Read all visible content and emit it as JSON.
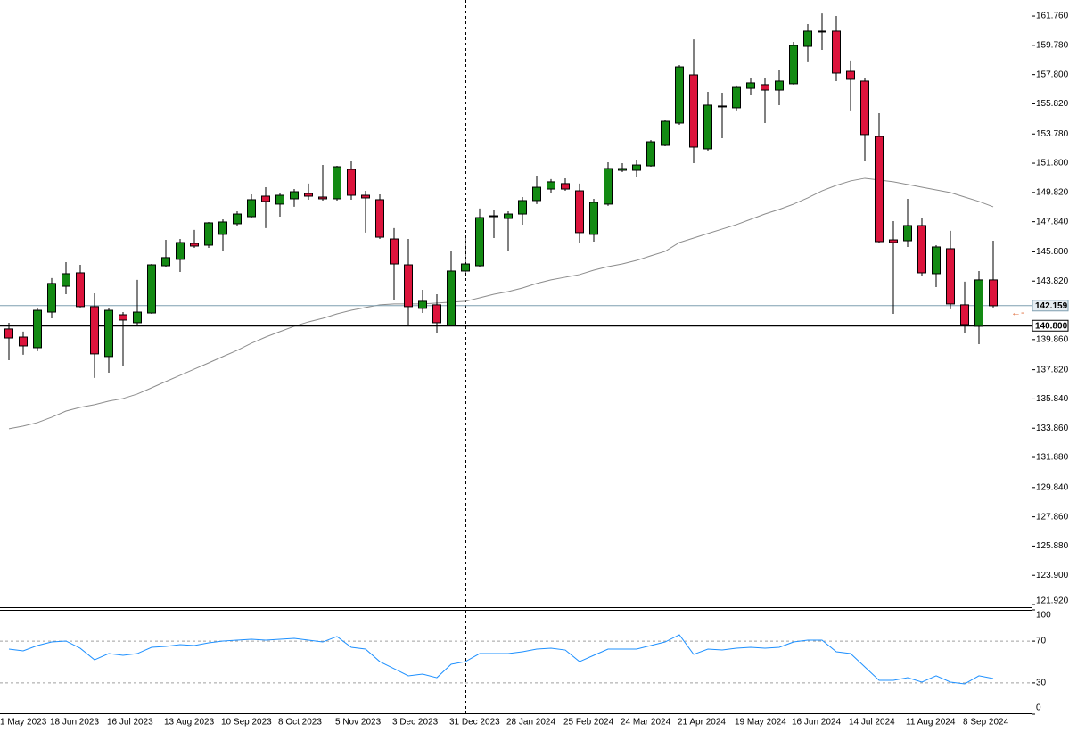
{
  "chart_data": [
    {
      "type": "candlestick",
      "categories": [
        "1 May 2023",
        null,
        null,
        "18 Jun 2023",
        null,
        null,
        null,
        "16 Jul 2023",
        null,
        null,
        null,
        "13 Aug 2023",
        null,
        null,
        null,
        "10 Sep 2023",
        null,
        null,
        null,
        "8 Oct 2023",
        null,
        null,
        null,
        "5 Nov 2023",
        null,
        null,
        null,
        "3 Dec 2023",
        null,
        null,
        null,
        "31 Dec 2023",
        null,
        null,
        null,
        "28 Jan 2024",
        null,
        null,
        null,
        "25 Feb 2024",
        null,
        null,
        null,
        "24 Mar 2024",
        null,
        null,
        null,
        "21 Apr 2024",
        null,
        null,
        null,
        "19 May 2024",
        null,
        null,
        null,
        "16 Jun 2024",
        null,
        null,
        null,
        "14 Jul 2024",
        null,
        null,
        null,
        "11 Aug 2024",
        null,
        null,
        null,
        "8 Sep 2024",
        null,
        null
      ],
      "open": [
        140.58,
        140.03,
        139.31,
        141.72,
        143.47,
        144.38,
        142.09,
        138.71,
        141.54,
        141.0,
        141.66,
        144.86,
        145.29,
        146.37,
        146.25,
        146.98,
        147.7,
        148.18,
        149.57,
        149.03,
        149.39,
        149.75,
        149.51,
        149.39,
        151.38,
        149.63,
        149.33,
        146.67,
        144.92,
        141.97,
        142.21,
        140.82,
        144.5,
        144.86,
        148.18,
        148.06,
        148.36,
        149.27,
        150.05,
        150.42,
        149.93,
        146.98,
        149.03,
        151.32,
        151.32,
        151.62,
        153.01,
        154.52,
        157.78,
        152.77,
        155.61,
        155.55,
        156.87,
        157.12,
        156.75,
        157.18,
        159.71,
        160.68,
        160.74,
        158.02,
        157.36,
        153.61,
        146.61,
        146.55,
        147.58,
        144.32,
        146.01,
        142.21,
        140.76,
        143.9
      ],
      "high": [
        141.0,
        140.4,
        141.97,
        144.02,
        145.1,
        144.92,
        142.99,
        141.97,
        141.72,
        143.9,
        144.98,
        146.61,
        146.67,
        147.28,
        147.82,
        148.0,
        148.54,
        149.69,
        150.17,
        149.81,
        150.05,
        150.42,
        151.68,
        151.62,
        151.92,
        149.93,
        149.69,
        147.4,
        146.67,
        143.23,
        142.93,
        145.83,
        146.73,
        148.73,
        148.61,
        148.54,
        149.51,
        150.96,
        150.72,
        150.78,
        150.42,
        149.39,
        151.86,
        151.8,
        151.99,
        153.37,
        154.7,
        158.44,
        160.19,
        156.63,
        156.57,
        157.06,
        157.6,
        157.6,
        158.14,
        160.01,
        161.22,
        161.94,
        161.76,
        158.75,
        157.54,
        155.18,
        147.88,
        149.39,
        148.06,
        146.25,
        147.22,
        143.78,
        144.5,
        146.55
      ],
      "low": [
        138.46,
        138.83,
        139.07,
        141.3,
        142.93,
        142.03,
        137.26,
        137.62,
        138.04,
        140.76,
        141.6,
        144.74,
        144.44,
        146.07,
        146.07,
        145.89,
        147.52,
        148.06,
        147.4,
        148.18,
        148.85,
        149.33,
        149.27,
        149.27,
        149.33,
        147.1,
        146.67,
        142.51,
        140.82,
        141.66,
        140.28,
        140.76,
        144.14,
        144.74,
        146.73,
        145.83,
        147.64,
        149.03,
        149.81,
        149.93,
        146.43,
        146.49,
        148.91,
        151.2,
        150.84,
        151.56,
        152.95,
        154.4,
        151.8,
        152.65,
        153.49,
        155.37,
        156.45,
        154.52,
        155.73,
        157.12,
        158.69,
        159.47,
        157.36,
        155.37,
        151.92,
        146.43,
        141.6,
        146.13,
        144.2,
        143.41,
        141.91,
        140.28,
        139.55,
        142.03
      ],
      "close": [
        139.97,
        139.43,
        141.84,
        143.66,
        144.32,
        142.09,
        138.89,
        141.84,
        141.18,
        141.72,
        144.92,
        145.41,
        146.43,
        146.19,
        147.76,
        147.82,
        148.36,
        149.33,
        149.21,
        149.63,
        149.87,
        149.57,
        149.39,
        151.56,
        149.63,
        149.45,
        146.79,
        144.98,
        142.09,
        142.45,
        141.0,
        144.5,
        144.98,
        148.12,
        148.24,
        148.36,
        149.27,
        150.17,
        150.54,
        150.05,
        147.1,
        149.15,
        151.44,
        151.44,
        151.68,
        153.25,
        154.64,
        158.32,
        152.89,
        155.73,
        155.67,
        156.93,
        157.24,
        156.75,
        157.36,
        159.77,
        160.74,
        160.74,
        157.9,
        157.48,
        153.74,
        146.49,
        146.43,
        147.58,
        144.38,
        146.13,
        142.27,
        140.88,
        143.9,
        142.15
      ],
      "up_color": "#138a13",
      "down_color": "#dc143c",
      "moving_average": {
        "color": "#8c8c8c",
        "values": [
          133.82,
          134.0,
          134.24,
          134.6,
          135.02,
          135.27,
          135.45,
          135.69,
          135.87,
          136.17,
          136.59,
          137.02,
          137.44,
          137.86,
          138.28,
          138.71,
          139.13,
          139.61,
          140.03,
          140.4,
          140.76,
          141.06,
          141.3,
          141.6,
          141.84,
          142.03,
          142.21,
          142.27,
          142.27,
          142.27,
          142.33,
          142.39,
          142.45,
          142.69,
          142.93,
          143.11,
          143.35,
          143.66,
          143.9,
          144.08,
          144.26,
          144.56,
          144.8,
          144.98,
          145.22,
          145.53,
          145.83,
          146.43,
          146.73,
          147.04,
          147.34,
          147.64,
          148.0,
          148.36,
          148.67,
          149.03,
          149.45,
          149.93,
          150.3,
          150.6,
          150.78,
          150.66,
          150.54,
          150.36,
          150.17,
          149.99,
          149.81,
          149.51,
          149.21,
          148.85
        ]
      },
      "price_lines": [
        {
          "value": 142.159,
          "color": "#7f9fb0",
          "width": 1
        },
        {
          "value": 140.8,
          "label": "140.800",
          "color": "#000000",
          "width": 2
        }
      ],
      "ylim": [
        121.74,
        162.85
      ],
      "yticks": [
        {
          "value": 161.76,
          "label": "161.760"
        },
        {
          "value": 159.78,
          "label": "159.780"
        },
        {
          "value": 157.8,
          "label": "157.800"
        },
        {
          "value": 155.82,
          "label": "155.820"
        },
        {
          "value": 153.78,
          "label": "153.780"
        },
        {
          "value": 151.8,
          "label": "151.800"
        },
        {
          "value": 149.82,
          "label": "149.820"
        },
        {
          "value": 147.84,
          "label": "147.840"
        },
        {
          "value": 145.8,
          "label": "145.800"
        },
        {
          "value": 143.82,
          "label": "143.820"
        },
        {
          "value": 139.86,
          "label": "139.860"
        },
        {
          "value": 137.82,
          "label": "137.820"
        },
        {
          "value": 135.84,
          "label": "135.840"
        },
        {
          "value": 133.86,
          "label": "133.860"
        },
        {
          "value": 131.88,
          "label": "131.880"
        },
        {
          "value": 129.84,
          "label": "129.840"
        },
        {
          "value": 127.86,
          "label": "127.860"
        },
        {
          "value": 125.88,
          "label": "125.880"
        },
        {
          "value": 123.9,
          "label": "123.900"
        },
        {
          "value": 121.92,
          "label": "121.920"
        }
      ],
      "grid": false
    },
    {
      "type": "line",
      "color": "#1e90ff",
      "values": [
        62.4,
        60.7,
        65.8,
        69.2,
        70.1,
        63.2,
        52.1,
        58.1,
        56.4,
        58.1,
        64.1,
        65.0,
        66.7,
        65.8,
        68.4,
        70.1,
        70.9,
        71.8,
        70.9,
        71.8,
        72.6,
        70.9,
        69.2,
        74.4,
        64.1,
        62.4,
        50.4,
        43.6,
        36.8,
        38.5,
        35.0,
        47.9,
        50.4,
        58.1,
        58.1,
        58.1,
        59.8,
        62.4,
        63.2,
        61.5,
        50.4,
        56.4,
        62.4,
        62.4,
        62.4,
        65.8,
        69.2,
        76.1,
        57.3,
        62.4,
        61.5,
        63.2,
        64.1,
        63.2,
        64.1,
        69.2,
        70.9,
        70.9,
        59.8,
        58.1,
        45.3,
        32.5,
        32.5,
        35.0,
        30.8,
        36.8,
        30.8,
        29.1,
        36.8,
        34.2
      ],
      "ylim": [
        0,
        100
      ],
      "yticks": [
        100,
        70,
        30,
        0
      ],
      "grid": true
    }
  ]
}
